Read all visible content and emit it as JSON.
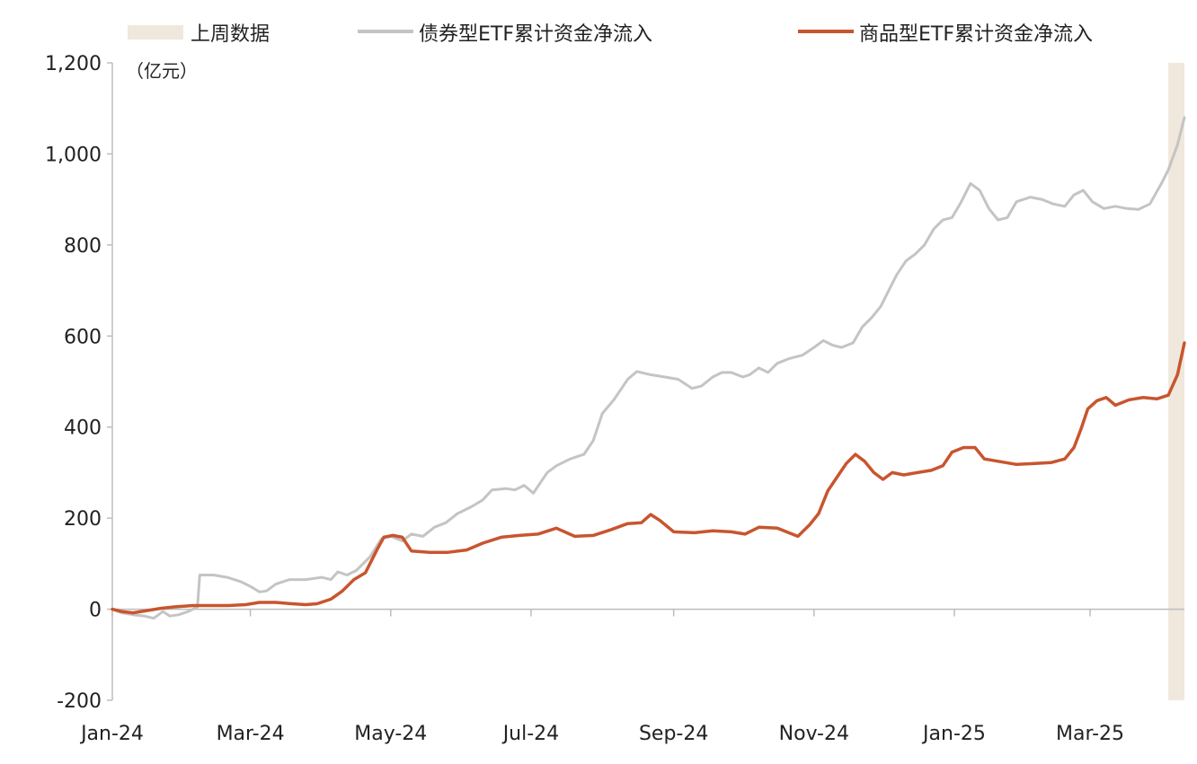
{
  "chart_data": {
    "type": "line",
    "title": "",
    "unit_label": "（亿元）",
    "xlabel": "",
    "ylabel": "",
    "ylim": [
      -200,
      1200
    ],
    "y_ticks": [
      -200,
      0,
      200,
      400,
      600,
      800,
      1000,
      1200
    ],
    "y_tick_labels": [
      "-200",
      "0",
      "200",
      "400",
      "600",
      "800",
      "1,000",
      "1,200"
    ],
    "x_range": [
      "2024-01-01",
      "2025-04-11"
    ],
    "x_ticks": [
      {
        "date": "2024-01-01",
        "label": "Jan-24"
      },
      {
        "date": "2024-03-01",
        "label": "Mar-24"
      },
      {
        "date": "2024-05-01",
        "label": "May-24"
      },
      {
        "date": "2024-07-01",
        "label": "Jul-24"
      },
      {
        "date": "2024-09-01",
        "label": "Sep-24"
      },
      {
        "date": "2024-11-01",
        "label": "Nov-24"
      },
      {
        "date": "2025-01-01",
        "label": "Jan-25"
      },
      {
        "date": "2025-03-01",
        "label": "Mar-25"
      }
    ],
    "grid": false,
    "legend_position": "top",
    "highlight": {
      "label": "上周数据",
      "start": "2025-04-04",
      "end": "2025-04-11",
      "color": "#f0e8dc"
    },
    "series": [
      {
        "name": "债券型ETF累计资金净流入",
        "color": "#c4c4c4",
        "points": [
          [
            "2024-01-01",
            0
          ],
          [
            "2024-01-05",
            -8
          ],
          [
            "2024-01-10",
            -12
          ],
          [
            "2024-01-15",
            -15
          ],
          [
            "2024-01-19",
            -20
          ],
          [
            "2024-01-23",
            -5
          ],
          [
            "2024-01-26",
            -15
          ],
          [
            "2024-01-30",
            -12
          ],
          [
            "2024-02-03",
            -5
          ],
          [
            "2024-02-07",
            5
          ],
          [
            "2024-02-08",
            75
          ],
          [
            "2024-02-14",
            75
          ],
          [
            "2024-02-20",
            70
          ],
          [
            "2024-02-26",
            60
          ],
          [
            "2024-03-01",
            50
          ],
          [
            "2024-03-05",
            38
          ],
          [
            "2024-03-08",
            40
          ],
          [
            "2024-03-12",
            55
          ],
          [
            "2024-03-18",
            65
          ],
          [
            "2024-03-25",
            65
          ],
          [
            "2024-04-01",
            70
          ],
          [
            "2024-04-05",
            65
          ],
          [
            "2024-04-08",
            82
          ],
          [
            "2024-04-12",
            75
          ],
          [
            "2024-04-16",
            85
          ],
          [
            "2024-04-22",
            115
          ],
          [
            "2024-04-27",
            155
          ],
          [
            "2024-05-01",
            160
          ],
          [
            "2024-05-06",
            150
          ],
          [
            "2024-05-10",
            165
          ],
          [
            "2024-05-15",
            160
          ],
          [
            "2024-05-20",
            180
          ],
          [
            "2024-05-25",
            190
          ],
          [
            "2024-05-30",
            210
          ],
          [
            "2024-06-05",
            225
          ],
          [
            "2024-06-10",
            240
          ],
          [
            "2024-06-14",
            262
          ],
          [
            "2024-06-20",
            265
          ],
          [
            "2024-06-24",
            262
          ],
          [
            "2024-06-28",
            272
          ],
          [
            "2024-07-02",
            255
          ],
          [
            "2024-07-08",
            300
          ],
          [
            "2024-07-12",
            315
          ],
          [
            "2024-07-18",
            330
          ],
          [
            "2024-07-24",
            340
          ],
          [
            "2024-07-28",
            370
          ],
          [
            "2024-08-01",
            430
          ],
          [
            "2024-08-06",
            460
          ],
          [
            "2024-08-12",
            505
          ],
          [
            "2024-08-16",
            522
          ],
          [
            "2024-08-22",
            515
          ],
          [
            "2024-08-28",
            510
          ],
          [
            "2024-09-03",
            505
          ],
          [
            "2024-09-09",
            485
          ],
          [
            "2024-09-13",
            490
          ],
          [
            "2024-09-18",
            510
          ],
          [
            "2024-09-22",
            520
          ],
          [
            "2024-09-26",
            520
          ],
          [
            "2024-10-01",
            510
          ],
          [
            "2024-10-04",
            515
          ],
          [
            "2024-10-08",
            530
          ],
          [
            "2024-10-12",
            520
          ],
          [
            "2024-10-16",
            540
          ],
          [
            "2024-10-21",
            550
          ],
          [
            "2024-10-27",
            558
          ],
          [
            "2024-11-01",
            575
          ],
          [
            "2024-11-05",
            590
          ],
          [
            "2024-11-09",
            580
          ],
          [
            "2024-11-13",
            575
          ],
          [
            "2024-11-18",
            585
          ],
          [
            "2024-11-22",
            620
          ],
          [
            "2024-11-26",
            640
          ],
          [
            "2024-11-30",
            665
          ],
          [
            "2024-12-03",
            695
          ],
          [
            "2024-12-07",
            735
          ],
          [
            "2024-12-11",
            765
          ],
          [
            "2024-12-15",
            780
          ],
          [
            "2024-12-19",
            800
          ],
          [
            "2024-12-23",
            835
          ],
          [
            "2024-12-27",
            855
          ],
          [
            "2024-12-31",
            860
          ],
          [
            "2025-01-04",
            895
          ],
          [
            "2025-01-08",
            935
          ],
          [
            "2025-01-12",
            920
          ],
          [
            "2025-01-16",
            880
          ],
          [
            "2025-01-20",
            855
          ],
          [
            "2025-01-24",
            860
          ],
          [
            "2025-01-28",
            895
          ],
          [
            "2025-02-03",
            905
          ],
          [
            "2025-02-08",
            900
          ],
          [
            "2025-02-13",
            890
          ],
          [
            "2025-02-18",
            885
          ],
          [
            "2025-02-22",
            910
          ],
          [
            "2025-02-26",
            920
          ],
          [
            "2025-03-02",
            895
          ],
          [
            "2025-03-07",
            880
          ],
          [
            "2025-03-12",
            885
          ],
          [
            "2025-03-17",
            880
          ],
          [
            "2025-03-22",
            878
          ],
          [
            "2025-03-27",
            890
          ],
          [
            "2025-04-01",
            935
          ],
          [
            "2025-04-04",
            965
          ],
          [
            "2025-04-08",
            1020
          ],
          [
            "2025-04-11",
            1080
          ]
        ]
      },
      {
        "name": "商品型ETF累计资金净流入",
        "color": "#c8552e",
        "points": [
          [
            "2024-01-01",
            0
          ],
          [
            "2024-01-05",
            -5
          ],
          [
            "2024-01-10",
            -8
          ],
          [
            "2024-01-16",
            -3
          ],
          [
            "2024-01-22",
            2
          ],
          [
            "2024-01-28",
            5
          ],
          [
            "2024-02-05",
            8
          ],
          [
            "2024-02-12",
            8
          ],
          [
            "2024-02-20",
            8
          ],
          [
            "2024-02-28",
            10
          ],
          [
            "2024-03-05",
            15
          ],
          [
            "2024-03-12",
            15
          ],
          [
            "2024-03-19",
            12
          ],
          [
            "2024-03-25",
            10
          ],
          [
            "2024-03-30",
            12
          ],
          [
            "2024-04-05",
            22
          ],
          [
            "2024-04-10",
            40
          ],
          [
            "2024-04-15",
            65
          ],
          [
            "2024-04-20",
            80
          ],
          [
            "2024-04-25",
            130
          ],
          [
            "2024-04-28",
            158
          ],
          [
            "2024-05-02",
            162
          ],
          [
            "2024-05-06",
            158
          ],
          [
            "2024-05-10",
            128
          ],
          [
            "2024-05-18",
            125
          ],
          [
            "2024-05-26",
            125
          ],
          [
            "2024-06-03",
            130
          ],
          [
            "2024-06-10",
            145
          ],
          [
            "2024-06-18",
            158
          ],
          [
            "2024-06-26",
            162
          ],
          [
            "2024-07-04",
            165
          ],
          [
            "2024-07-12",
            178
          ],
          [
            "2024-07-20",
            160
          ],
          [
            "2024-07-28",
            162
          ],
          [
            "2024-08-05",
            175
          ],
          [
            "2024-08-12",
            188
          ],
          [
            "2024-08-18",
            190
          ],
          [
            "2024-08-22",
            208
          ],
          [
            "2024-08-26",
            195
          ],
          [
            "2024-09-01",
            170
          ],
          [
            "2024-09-10",
            168
          ],
          [
            "2024-09-18",
            172
          ],
          [
            "2024-09-26",
            170
          ],
          [
            "2024-10-02",
            165
          ],
          [
            "2024-10-08",
            180
          ],
          [
            "2024-10-16",
            178
          ],
          [
            "2024-10-21",
            168
          ],
          [
            "2024-10-25",
            160
          ],
          [
            "2024-10-30",
            185
          ],
          [
            "2024-11-03",
            210
          ],
          [
            "2024-11-07",
            260
          ],
          [
            "2024-11-11",
            290
          ],
          [
            "2024-11-15",
            320
          ],
          [
            "2024-11-19",
            340
          ],
          [
            "2024-11-23",
            325
          ],
          [
            "2024-11-27",
            300
          ],
          [
            "2024-12-01",
            285
          ],
          [
            "2024-12-05",
            300
          ],
          [
            "2024-12-10",
            295
          ],
          [
            "2024-12-16",
            300
          ],
          [
            "2024-12-22",
            305
          ],
          [
            "2024-12-27",
            315
          ],
          [
            "2024-12-31",
            345
          ],
          [
            "2025-01-05",
            355
          ],
          [
            "2025-01-10",
            355
          ],
          [
            "2025-01-14",
            330
          ],
          [
            "2025-01-20",
            325
          ],
          [
            "2025-01-28",
            318
          ],
          [
            "2025-02-05",
            320
          ],
          [
            "2025-02-12",
            322
          ],
          [
            "2025-02-18",
            330
          ],
          [
            "2025-02-22",
            355
          ],
          [
            "2025-02-25",
            395
          ],
          [
            "2025-02-28",
            440
          ],
          [
            "2025-03-04",
            458
          ],
          [
            "2025-03-08",
            465
          ],
          [
            "2025-03-12",
            448
          ],
          [
            "2025-03-18",
            460
          ],
          [
            "2025-03-24",
            465
          ],
          [
            "2025-03-30",
            462
          ],
          [
            "2025-04-04",
            470
          ],
          [
            "2025-04-08",
            515
          ],
          [
            "2025-04-11",
            585
          ]
        ]
      }
    ]
  }
}
